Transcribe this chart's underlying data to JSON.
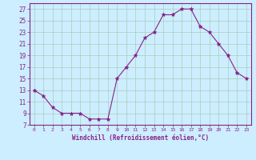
{
  "x": [
    0,
    1,
    2,
    3,
    4,
    5,
    6,
    7,
    8,
    9,
    10,
    11,
    12,
    13,
    14,
    15,
    16,
    17,
    18,
    19,
    20,
    21,
    22,
    23
  ],
  "y": [
    13,
    12,
    10,
    9,
    9,
    9,
    8,
    8,
    8,
    15,
    17,
    19,
    22,
    23,
    26,
    26,
    27,
    27,
    24,
    23,
    21,
    19,
    16,
    15
  ],
  "xlim": [
    -0.5,
    23.5
  ],
  "ylim": [
    7,
    28
  ],
  "yticks": [
    7,
    9,
    11,
    13,
    15,
    17,
    19,
    21,
    23,
    25,
    27
  ],
  "xticks": [
    0,
    1,
    2,
    3,
    4,
    5,
    6,
    7,
    8,
    9,
    10,
    11,
    12,
    13,
    14,
    15,
    16,
    17,
    18,
    19,
    20,
    21,
    22,
    23
  ],
  "xlabel": "Windchill (Refroidissement éolien,°C)",
  "line_color": "#882288",
  "marker": "*",
  "bg_color": "#cceeff",
  "grid_color": "#aaccbb",
  "tick_label_color": "#882288",
  "axis_color": "#882288",
  "xlabel_color": "#882288"
}
